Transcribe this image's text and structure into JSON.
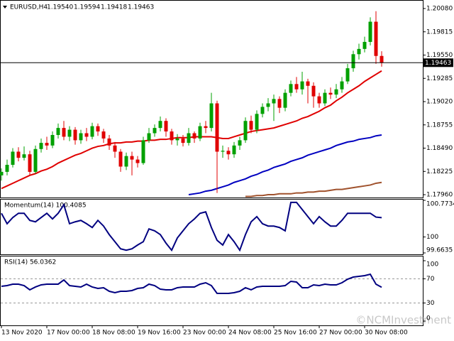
{
  "watermark": "©NCMInvestment",
  "chart_data": [
    {
      "type": "candlestick",
      "title": "EURUSD,H4",
      "ohlc_labels": [
        "1.19540",
        "1.19594",
        "1.19418",
        "1.19463"
      ],
      "categories": [
        "13 Nov 2020",
        null,
        null,
        null,
        null,
        null,
        null,
        null,
        "17 Nov 00:00",
        null,
        null,
        null,
        null,
        null,
        null,
        null,
        "18 Nov 08:00",
        null,
        null,
        null,
        null,
        null,
        null,
        null,
        "19 Nov 16:00",
        null,
        null,
        null,
        null,
        null,
        null,
        null,
        "23 Nov 00:00",
        null,
        null,
        null,
        null,
        null,
        null,
        null,
        "24 Nov 08:00",
        null,
        null,
        null,
        null,
        null,
        null,
        null,
        "25 Nov 16:00",
        null,
        null,
        null,
        null,
        null,
        null,
        null,
        "27 Nov 00:00",
        null,
        null,
        null,
        null,
        null,
        null,
        null,
        "30 Nov 08:00",
        null,
        null,
        null
      ],
      "open": [
        1.1818,
        1.1822,
        1.183,
        1.1845,
        1.1838,
        1.1842,
        1.1822,
        1.1848,
        1.1855,
        1.1852,
        1.1864,
        1.1872,
        1.1862,
        1.187,
        1.1858,
        1.1866,
        1.1862,
        1.1874,
        1.1868,
        1.186,
        1.1852,
        1.1845,
        1.1828,
        1.184,
        1.1836,
        1.1832,
        1.1858,
        1.1866,
        1.1872,
        1.188,
        1.1868,
        1.1858,
        1.186,
        1.1855,
        1.1866,
        1.186,
        1.1874,
        1.1872,
        1.19,
        1.1845,
        1.1846,
        1.1842,
        1.1852,
        1.1858,
        1.188,
        1.187,
        1.1888,
        1.1896,
        1.19,
        1.1905,
        1.1895,
        1.1912,
        1.1922,
        1.1916,
        1.1925,
        1.192,
        1.1908,
        1.19,
        1.1912,
        1.191,
        1.1916,
        1.1925,
        1.194,
        1.1956,
        1.1962,
        1.197,
        1.1993,
        1.1954
      ],
      "high": [
        1.1826,
        1.1836,
        1.1849,
        1.185,
        1.1851,
        1.1846,
        1.1852,
        1.186,
        1.1862,
        1.1868,
        1.1877,
        1.188,
        1.1874,
        1.1873,
        1.187,
        1.1872,
        1.1878,
        1.1877,
        1.1871,
        1.1864,
        1.1856,
        1.1848,
        1.1844,
        1.1845,
        1.184,
        1.1862,
        1.1872,
        1.1876,
        1.1885,
        1.1883,
        1.1871,
        1.1865,
        1.1864,
        1.1872,
        1.1868,
        1.1878,
        1.188,
        1.1912,
        1.1903,
        1.1852,
        1.185,
        1.1856,
        1.1862,
        1.1884,
        1.1886,
        1.1892,
        1.19,
        1.1906,
        1.191,
        1.1908,
        1.1916,
        1.1926,
        1.193,
        1.1936,
        1.1928,
        1.1924,
        1.1912,
        1.1916,
        1.1918,
        1.1922,
        1.193,
        1.1945,
        1.196,
        1.1968,
        1.1976,
        1.1998,
        1.2005,
        1.19594
      ],
      "low": [
        1.1812,
        1.1818,
        1.1827,
        1.1834,
        1.1835,
        1.1818,
        1.182,
        1.1844,
        1.1847,
        1.1849,
        1.186,
        1.1858,
        1.1857,
        1.1853,
        1.1854,
        1.1857,
        1.1859,
        1.1863,
        1.1855,
        1.1847,
        1.1838,
        1.1822,
        1.1824,
        1.1818,
        1.1827,
        1.183,
        1.1855,
        1.1862,
        1.1868,
        1.1862,
        1.1853,
        1.1852,
        1.1851,
        1.1852,
        1.1855,
        1.1857,
        1.1866,
        1.1868,
        1.1798,
        1.1838,
        1.1836,
        1.1838,
        1.1847,
        1.1855,
        1.1866,
        1.1866,
        1.1884,
        1.1891,
        1.188,
        1.1889,
        1.1891,
        1.1908,
        1.1912,
        1.191,
        1.19,
        1.1895,
        1.1895,
        1.1897,
        1.1905,
        1.1906,
        1.1912,
        1.1922,
        1.1936,
        1.195,
        1.1958,
        1.1966,
        1.1945,
        1.19418
      ],
      "close": [
        1.1822,
        1.183,
        1.1845,
        1.1838,
        1.1842,
        1.1822,
        1.1848,
        1.1855,
        1.1852,
        1.1864,
        1.1872,
        1.1862,
        1.187,
        1.1858,
        1.1866,
        1.1862,
        1.1874,
        1.1868,
        1.186,
        1.1852,
        1.1845,
        1.1828,
        1.184,
        1.1836,
        1.1832,
        1.1858,
        1.1866,
        1.1872,
        1.188,
        1.1868,
        1.1858,
        1.186,
        1.1855,
        1.1866,
        1.186,
        1.1874,
        1.1872,
        1.19,
        1.1845,
        1.1846,
        1.1842,
        1.1852,
        1.1858,
        1.188,
        1.187,
        1.1888,
        1.1896,
        1.19,
        1.1905,
        1.1895,
        1.1912,
        1.1922,
        1.1916,
        1.1925,
        1.192,
        1.1908,
        1.19,
        1.1912,
        1.191,
        1.1916,
        1.1925,
        1.194,
        1.1956,
        1.1962,
        1.197,
        1.1993,
        1.1954,
        1.19463
      ],
      "up_color": "#00a000",
      "down_color": "#e00000",
      "lines": [
        {
          "color": "#e00000",
          "values": [
            1.1803,
            1.1806,
            1.1809,
            1.1812,
            1.1815,
            1.1818,
            1.182,
            1.1823,
            1.1825,
            1.1828,
            1.1832,
            1.1835,
            1.1838,
            1.1841,
            1.1843,
            1.1846,
            1.1849,
            1.1851,
            1.1852,
            1.1854,
            1.1855,
            1.1855,
            1.1856,
            1.1856,
            1.1857,
            1.1857,
            1.1858,
            1.1858,
            1.1859,
            1.1859,
            1.186,
            1.1861,
            1.1861,
            1.1861,
            1.1862,
            1.1862,
            1.1862,
            1.1862,
            1.1861,
            1.186,
            1.186,
            1.1862,
            1.1864,
            1.1866,
            1.1868,
            1.1869,
            1.187,
            1.1871,
            1.1872,
            1.1874,
            1.1876,
            1.1878,
            1.188,
            1.1883,
            1.1885,
            1.1888,
            1.1891,
            1.1895,
            1.1898,
            1.1903,
            1.1907,
            1.1912,
            1.1916,
            1.192,
            1.1925,
            1.1929,
            1.1933,
            1.1937
          ]
        },
        {
          "color": "#0000c0",
          "values": [
            null,
            null,
            null,
            null,
            null,
            null,
            null,
            null,
            null,
            null,
            null,
            null,
            null,
            null,
            null,
            null,
            null,
            null,
            null,
            null,
            null,
            null,
            null,
            null,
            null,
            null,
            null,
            null,
            null,
            null,
            null,
            null,
            null,
            1.1796,
            1.1797,
            1.1798,
            1.18,
            1.1801,
            1.1803,
            1.1805,
            1.1807,
            1.181,
            1.1812,
            1.1814,
            1.1817,
            1.1819,
            1.1822,
            1.1824,
            1.1827,
            1.1829,
            1.1831,
            1.1834,
            1.1836,
            1.1838,
            1.1841,
            1.1843,
            1.1845,
            1.1847,
            1.1849,
            1.1852,
            1.1854,
            1.1856,
            1.1857,
            1.1859,
            1.186,
            1.1861,
            1.1863,
            1.1864
          ]
        },
        {
          "color": "#a0522d",
          "values": [
            null,
            null,
            null,
            null,
            null,
            null,
            null,
            null,
            null,
            null,
            null,
            null,
            null,
            null,
            null,
            null,
            null,
            null,
            null,
            null,
            null,
            null,
            null,
            null,
            null,
            null,
            null,
            null,
            null,
            null,
            null,
            null,
            null,
            null,
            null,
            null,
            null,
            null,
            null,
            null,
            null,
            null,
            null,
            1.1794,
            1.1794,
            1.1795,
            1.1795,
            1.1796,
            1.1796,
            1.1797,
            1.1797,
            1.1797,
            1.1798,
            1.1798,
            1.1799,
            1.1799,
            1.18,
            1.18,
            1.1801,
            1.1802,
            1.1802,
            1.1803,
            1.1804,
            1.1805,
            1.1806,
            1.1807,
            1.1809,
            1.181
          ]
        }
      ],
      "ylim": [
        1.17928,
        1.20161
      ],
      "yticks": [
        {
          "value": 1.2008,
          "label": "1.20080"
        },
        {
          "value": 1.19815,
          "label": "1.19815"
        },
        {
          "value": 1.1955,
          "label": "1.19550"
        },
        {
          "value": 1.19285,
          "label": "1.19285"
        },
        {
          "value": 1.1902,
          "label": "1.19020"
        },
        {
          "value": 1.18755,
          "label": "1.18755"
        },
        {
          "value": 1.1849,
          "label": "1.18490"
        },
        {
          "value": 1.18225,
          "label": "1.18225"
        },
        {
          "value": 1.1796,
          "label": "1.17960"
        }
      ],
      "current_price": 1.19463
    },
    {
      "type": "line",
      "title": "Momentum(14) 100.4085",
      "color": "#000080",
      "values": [
        100.5,
        100.28,
        100.41,
        100.5,
        100.5,
        100.35,
        100.32,
        100.41,
        100.5,
        100.38,
        100.5,
        100.68,
        100.28,
        100.32,
        100.35,
        100.28,
        100.2,
        100.35,
        100.23,
        100.05,
        99.9,
        99.75,
        99.72,
        99.75,
        99.83,
        99.9,
        100.17,
        100.13,
        100.05,
        99.87,
        99.72,
        99.98,
        100.13,
        100.28,
        100.38,
        100.5,
        100.53,
        100.2,
        99.93,
        99.83,
        100.05,
        99.9,
        99.72,
        100.05,
        100.32,
        100.43,
        100.28,
        100.23,
        100.23,
        100.2,
        100.13,
        100.73,
        100.73,
        100.58,
        100.43,
        100.28,
        100.43,
        100.32,
        100.23,
        100.23,
        100.35,
        100.5,
        100.5,
        100.5,
        100.5,
        100.5,
        100.42,
        100.4085
      ],
      "ylim": [
        99.6635,
        100.7734
      ],
      "yticks": [
        100.7734,
        100,
        99.6635
      ]
    },
    {
      "type": "line",
      "title": "RSI(14) 56.0362",
      "color": "#000080",
      "values": [
        57.6,
        58.8,
        61.2,
        61.2,
        58.8,
        51.8,
        56.5,
        60,
        61.2,
        61.2,
        61.2,
        68.2,
        58.8,
        57.6,
        56.5,
        61.2,
        56.5,
        54.1,
        55.3,
        49.4,
        47.1,
        49.4,
        49.4,
        50.6,
        54.1,
        55.3,
        61.2,
        58.8,
        52.9,
        51.8,
        51.8,
        55.3,
        56.5,
        56.5,
        56.5,
        61.2,
        63.5,
        58.8,
        45.9,
        45.9,
        45.9,
        47.1,
        49.4,
        55.3,
        51.8,
        56.5,
        57.6,
        57.6,
        57.6,
        57.6,
        58.8,
        65.9,
        64.7,
        55.3,
        55.3,
        60,
        58.8,
        61.2,
        60,
        60,
        63.5,
        69.4,
        72.9,
        74.1,
        75.3,
        77.6,
        61.2,
        56.0362
      ],
      "ylim": [
        0,
        100
      ],
      "yticks": [
        100,
        70,
        30,
        0
      ]
    }
  ]
}
